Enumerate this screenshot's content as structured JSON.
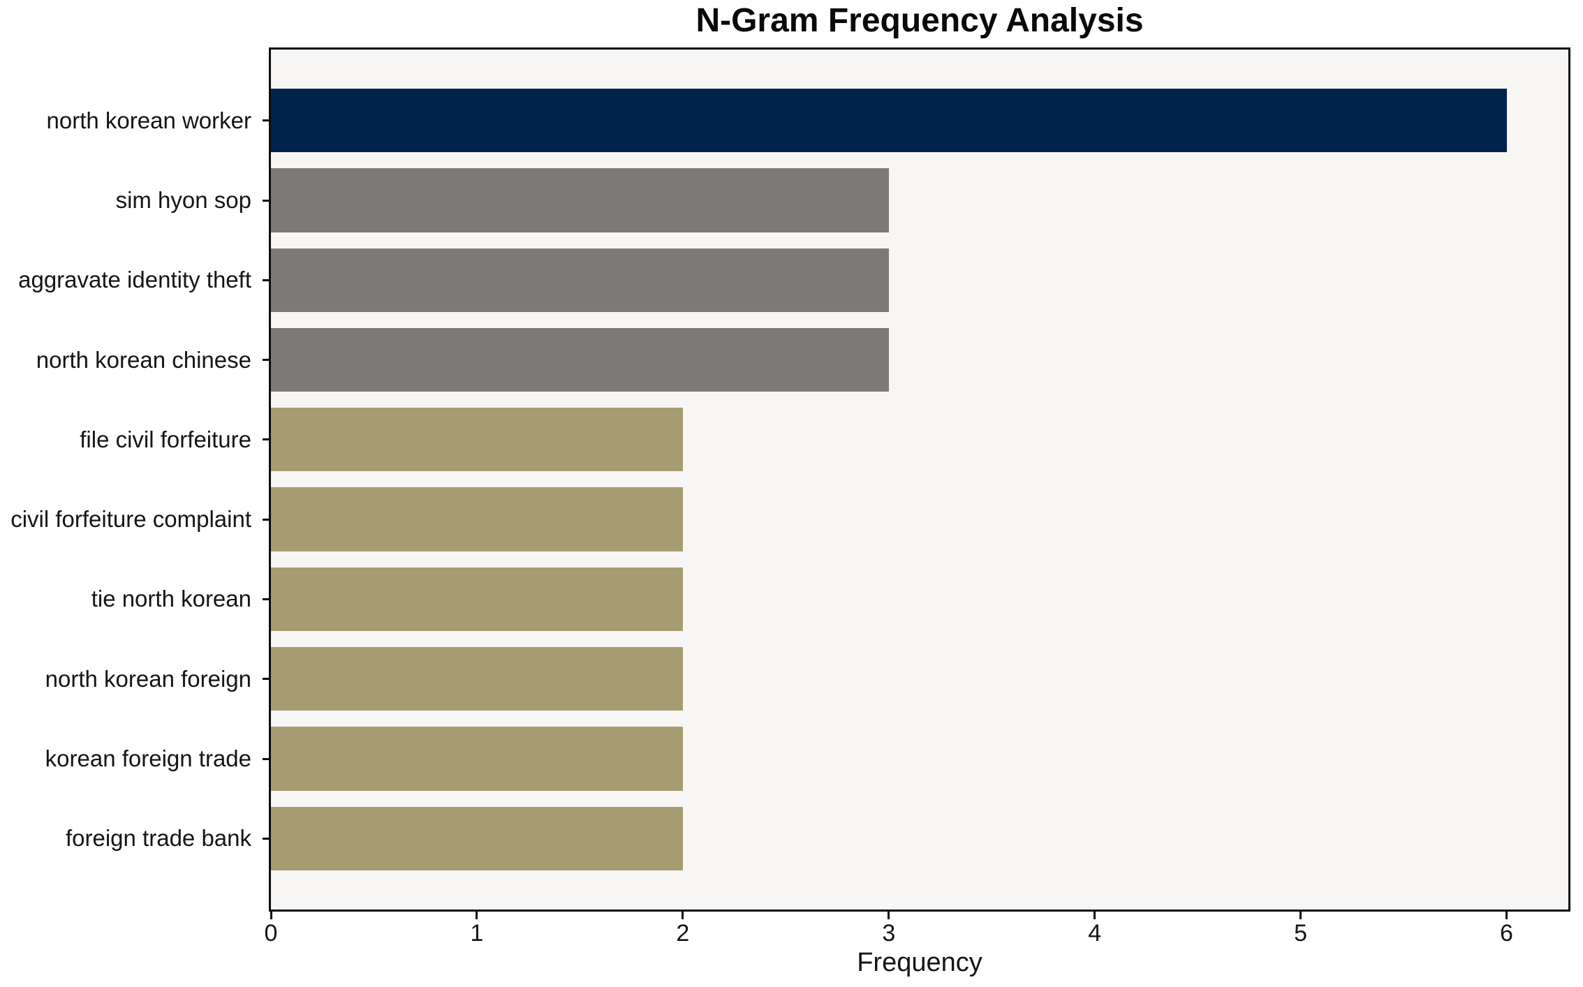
{
  "title": "N-Gram Frequency Analysis",
  "chart_data": {
    "type": "bar",
    "orientation": "horizontal",
    "title": "N-Gram Frequency Analysis",
    "xlabel": "Frequency",
    "ylabel": "",
    "categories": [
      "north korean worker",
      "sim hyon sop",
      "aggravate identity theft",
      "north korean chinese",
      "file civil forfeiture",
      "civil forfeiture complaint",
      "tie north korean",
      "north korean foreign",
      "korean foreign trade",
      "foreign trade bank"
    ],
    "values": [
      6,
      3,
      3,
      3,
      2,
      2,
      2,
      2,
      2,
      2
    ],
    "bar_colors": [
      "#00234d",
      "#7b7a77",
      "#7b7a77",
      "#7b7a77",
      "#a59c72",
      "#a59c72",
      "#a59c72",
      "#a59c72",
      "#a59c72",
      "#a59c72"
    ],
    "xticks": [
      0,
      1,
      2,
      3,
      4,
      5,
      6
    ],
    "xlim": [
      0,
      6.3
    ],
    "grid": false,
    "legend": null,
    "plot_background": "#f7f6f4",
    "figure_background": "#ffffff",
    "frame_color": "#0d0d0d"
  }
}
